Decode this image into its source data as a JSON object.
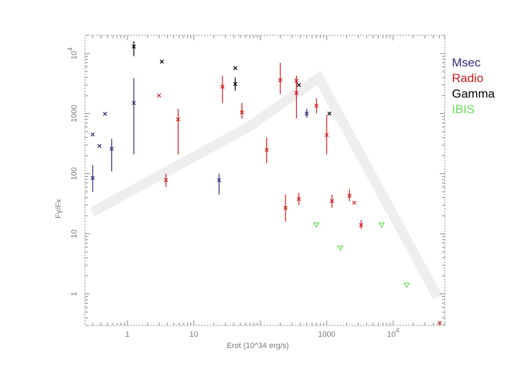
{
  "chart_data": {
    "type": "scatter",
    "xlabel": "Erot (10^34 erg/s)",
    "ylabel": "Fγ/Fx",
    "x_scale": "log",
    "y_scale": "log",
    "xlim": [
      0.23,
      60000
    ],
    "ylim": [
      0.3,
      20000
    ],
    "x_ticks": [
      {
        "value": 1,
        "label": "1"
      },
      {
        "value": 10,
        "label": "10"
      },
      {
        "value": 1000,
        "label": "1000"
      },
      {
        "value": 10000,
        "label": "10",
        "sup": "4"
      }
    ],
    "y_ticks": [
      {
        "value": 1,
        "label": "1"
      },
      {
        "value": 10,
        "label": "10"
      },
      {
        "value": 100,
        "label": "100"
      },
      {
        "value": 1000,
        "label": "1000"
      },
      {
        "value": 10000,
        "label": "10",
        "sup": "4"
      }
    ],
    "legend_position": "right",
    "grid": false,
    "series": [
      {
        "name": "Msec",
        "color": "#2a2a7a",
        "marker": "cross",
        "points": [
          {
            "x": 0.3,
            "y": 450
          },
          {
            "x": 0.3,
            "y": 85,
            "lo": 50,
            "hi": 140
          },
          {
            "x": 0.38,
            "y": 290
          },
          {
            "x": 0.46,
            "y": 990
          },
          {
            "x": 0.58,
            "y": 260,
            "lo": 110,
            "hi": 380
          },
          {
            "x": 1.25,
            "y": 1500,
            "lo": 210,
            "hi": 3900
          },
          {
            "x": 24,
            "y": 78,
            "lo": 45,
            "hi": 100
          },
          {
            "x": 500,
            "y": 1000,
            "lo": 850,
            "hi": 1200
          }
        ]
      },
      {
        "name": "Radio",
        "color": "#d01a1a",
        "marker": "cross",
        "points": [
          {
            "x": 3,
            "y": 2000
          },
          {
            "x": 3.8,
            "y": 78,
            "lo": 60,
            "hi": 100
          },
          {
            "x": 5.8,
            "y": 800,
            "lo": 210,
            "hi": 1200
          },
          {
            "x": 27,
            "y": 2800,
            "lo": 1500,
            "hi": 4300
          },
          {
            "x": 53,
            "y": 1050,
            "lo": 820,
            "hi": 1500
          },
          {
            "x": 125,
            "y": 250,
            "lo": 150,
            "hi": 400
          },
          {
            "x": 200,
            "y": 3600,
            "lo": 2100,
            "hi": 7000
          },
          {
            "x": 240,
            "y": 27,
            "lo": 16,
            "hi": 45
          },
          {
            "x": 350,
            "y": 3500,
            "lo": 2500,
            "hi": 4300
          },
          {
            "x": 350,
            "y": 2200,
            "lo": 830,
            "hi": 3800
          },
          {
            "x": 380,
            "y": 38,
            "lo": 30,
            "hi": 48
          },
          {
            "x": 700,
            "y": 1350,
            "lo": 1000,
            "hi": 1800
          },
          {
            "x": 1000,
            "y": 440,
            "lo": 210,
            "hi": 950
          },
          {
            "x": 1200,
            "y": 35,
            "lo": 27,
            "hi": 45
          },
          {
            "x": 2200,
            "y": 43,
            "lo": 35,
            "hi": 55
          },
          {
            "x": 2600,
            "y": 33
          },
          {
            "x": 3300,
            "y": 14,
            "lo": 12,
            "hi": 17
          },
          {
            "x": 50000,
            "y": 0.33
          }
        ]
      },
      {
        "name": "Gamma",
        "color": "#000000",
        "marker": "cross",
        "points": [
          {
            "x": 1.25,
            "y": 13000,
            "lo": 9000,
            "hi": 16000
          },
          {
            "x": 3.3,
            "y": 7300
          },
          {
            "x": 42,
            "y": 5700
          },
          {
            "x": 42,
            "y": 3100,
            "lo": 2400,
            "hi": 4000
          },
          {
            "x": 380,
            "y": 3000
          },
          {
            "x": 1100,
            "y": 1000
          }
        ]
      },
      {
        "name": "IBIS",
        "color": "#66dd55",
        "marker": "triangle-down",
        "points": [
          {
            "x": 700,
            "y": 14
          },
          {
            "x": 1600,
            "y": 5.8
          },
          {
            "x": 6700,
            "y": 14
          },
          {
            "x": 16000,
            "y": 1.4
          }
        ]
      }
    ]
  }
}
